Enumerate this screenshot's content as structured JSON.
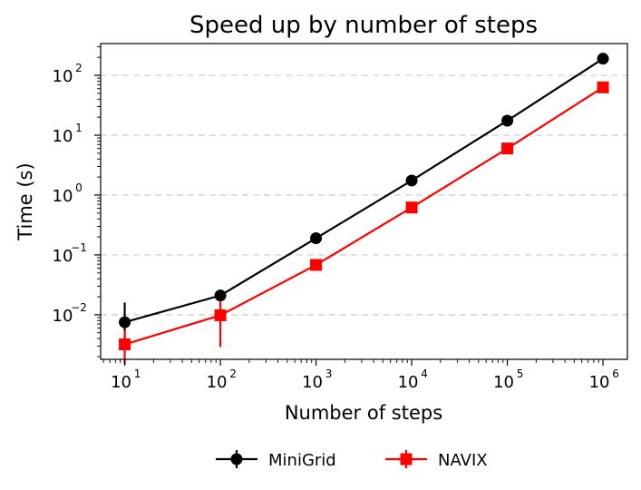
{
  "chart_data": {
    "type": "line",
    "title": "Speed up by number of steps",
    "xlabel": "Number of steps",
    "ylabel": "Time (s)",
    "x_scale": "log",
    "y_scale": "log",
    "x": [
      10,
      100,
      1000,
      10000,
      100000,
      1000000
    ],
    "xlim": [
      5.6,
      1800000
    ],
    "ylim": [
      0.0018,
      340
    ],
    "x_ticks": [
      {
        "value": 10,
        "base": "10",
        "exp": "1"
      },
      {
        "value": 100,
        "base": "10",
        "exp": "2"
      },
      {
        "value": 1000,
        "base": "10",
        "exp": "3"
      },
      {
        "value": 10000,
        "base": "10",
        "exp": "4"
      },
      {
        "value": 100000,
        "base": "10",
        "exp": "5"
      },
      {
        "value": 1000000,
        "base": "10",
        "exp": "6"
      }
    ],
    "y_ticks": [
      {
        "value": 0.01,
        "base": "10",
        "exp": "−2"
      },
      {
        "value": 0.1,
        "base": "10",
        "exp": "−1"
      },
      {
        "value": 1,
        "base": "10",
        "exp": "0"
      },
      {
        "value": 10,
        "base": "10",
        "exp": "1"
      },
      {
        "value": 100,
        "base": "10",
        "exp": "2"
      }
    ],
    "grid": "y-dashed",
    "legend_position": "below",
    "series": [
      {
        "name": "MiniGrid",
        "color": "#000000",
        "marker": "circle",
        "values": [
          0.0075,
          0.021,
          0.19,
          1.75,
          17.5,
          190
        ],
        "err_low": [
          0.0025,
          null,
          null,
          null,
          null,
          null
        ],
        "err_high": [
          0.016,
          null,
          null,
          null,
          null,
          null
        ]
      },
      {
        "name": "NAVIX",
        "color": "#ff0000",
        "marker": "square",
        "values": [
          0.0032,
          0.0098,
          0.068,
          0.62,
          6.0,
          63
        ],
        "err_low": [
          0.0015,
          0.0029,
          null,
          null,
          null,
          null
        ],
        "err_high": [
          0.0055,
          0.017,
          null,
          null,
          null,
          null
        ]
      }
    ]
  }
}
